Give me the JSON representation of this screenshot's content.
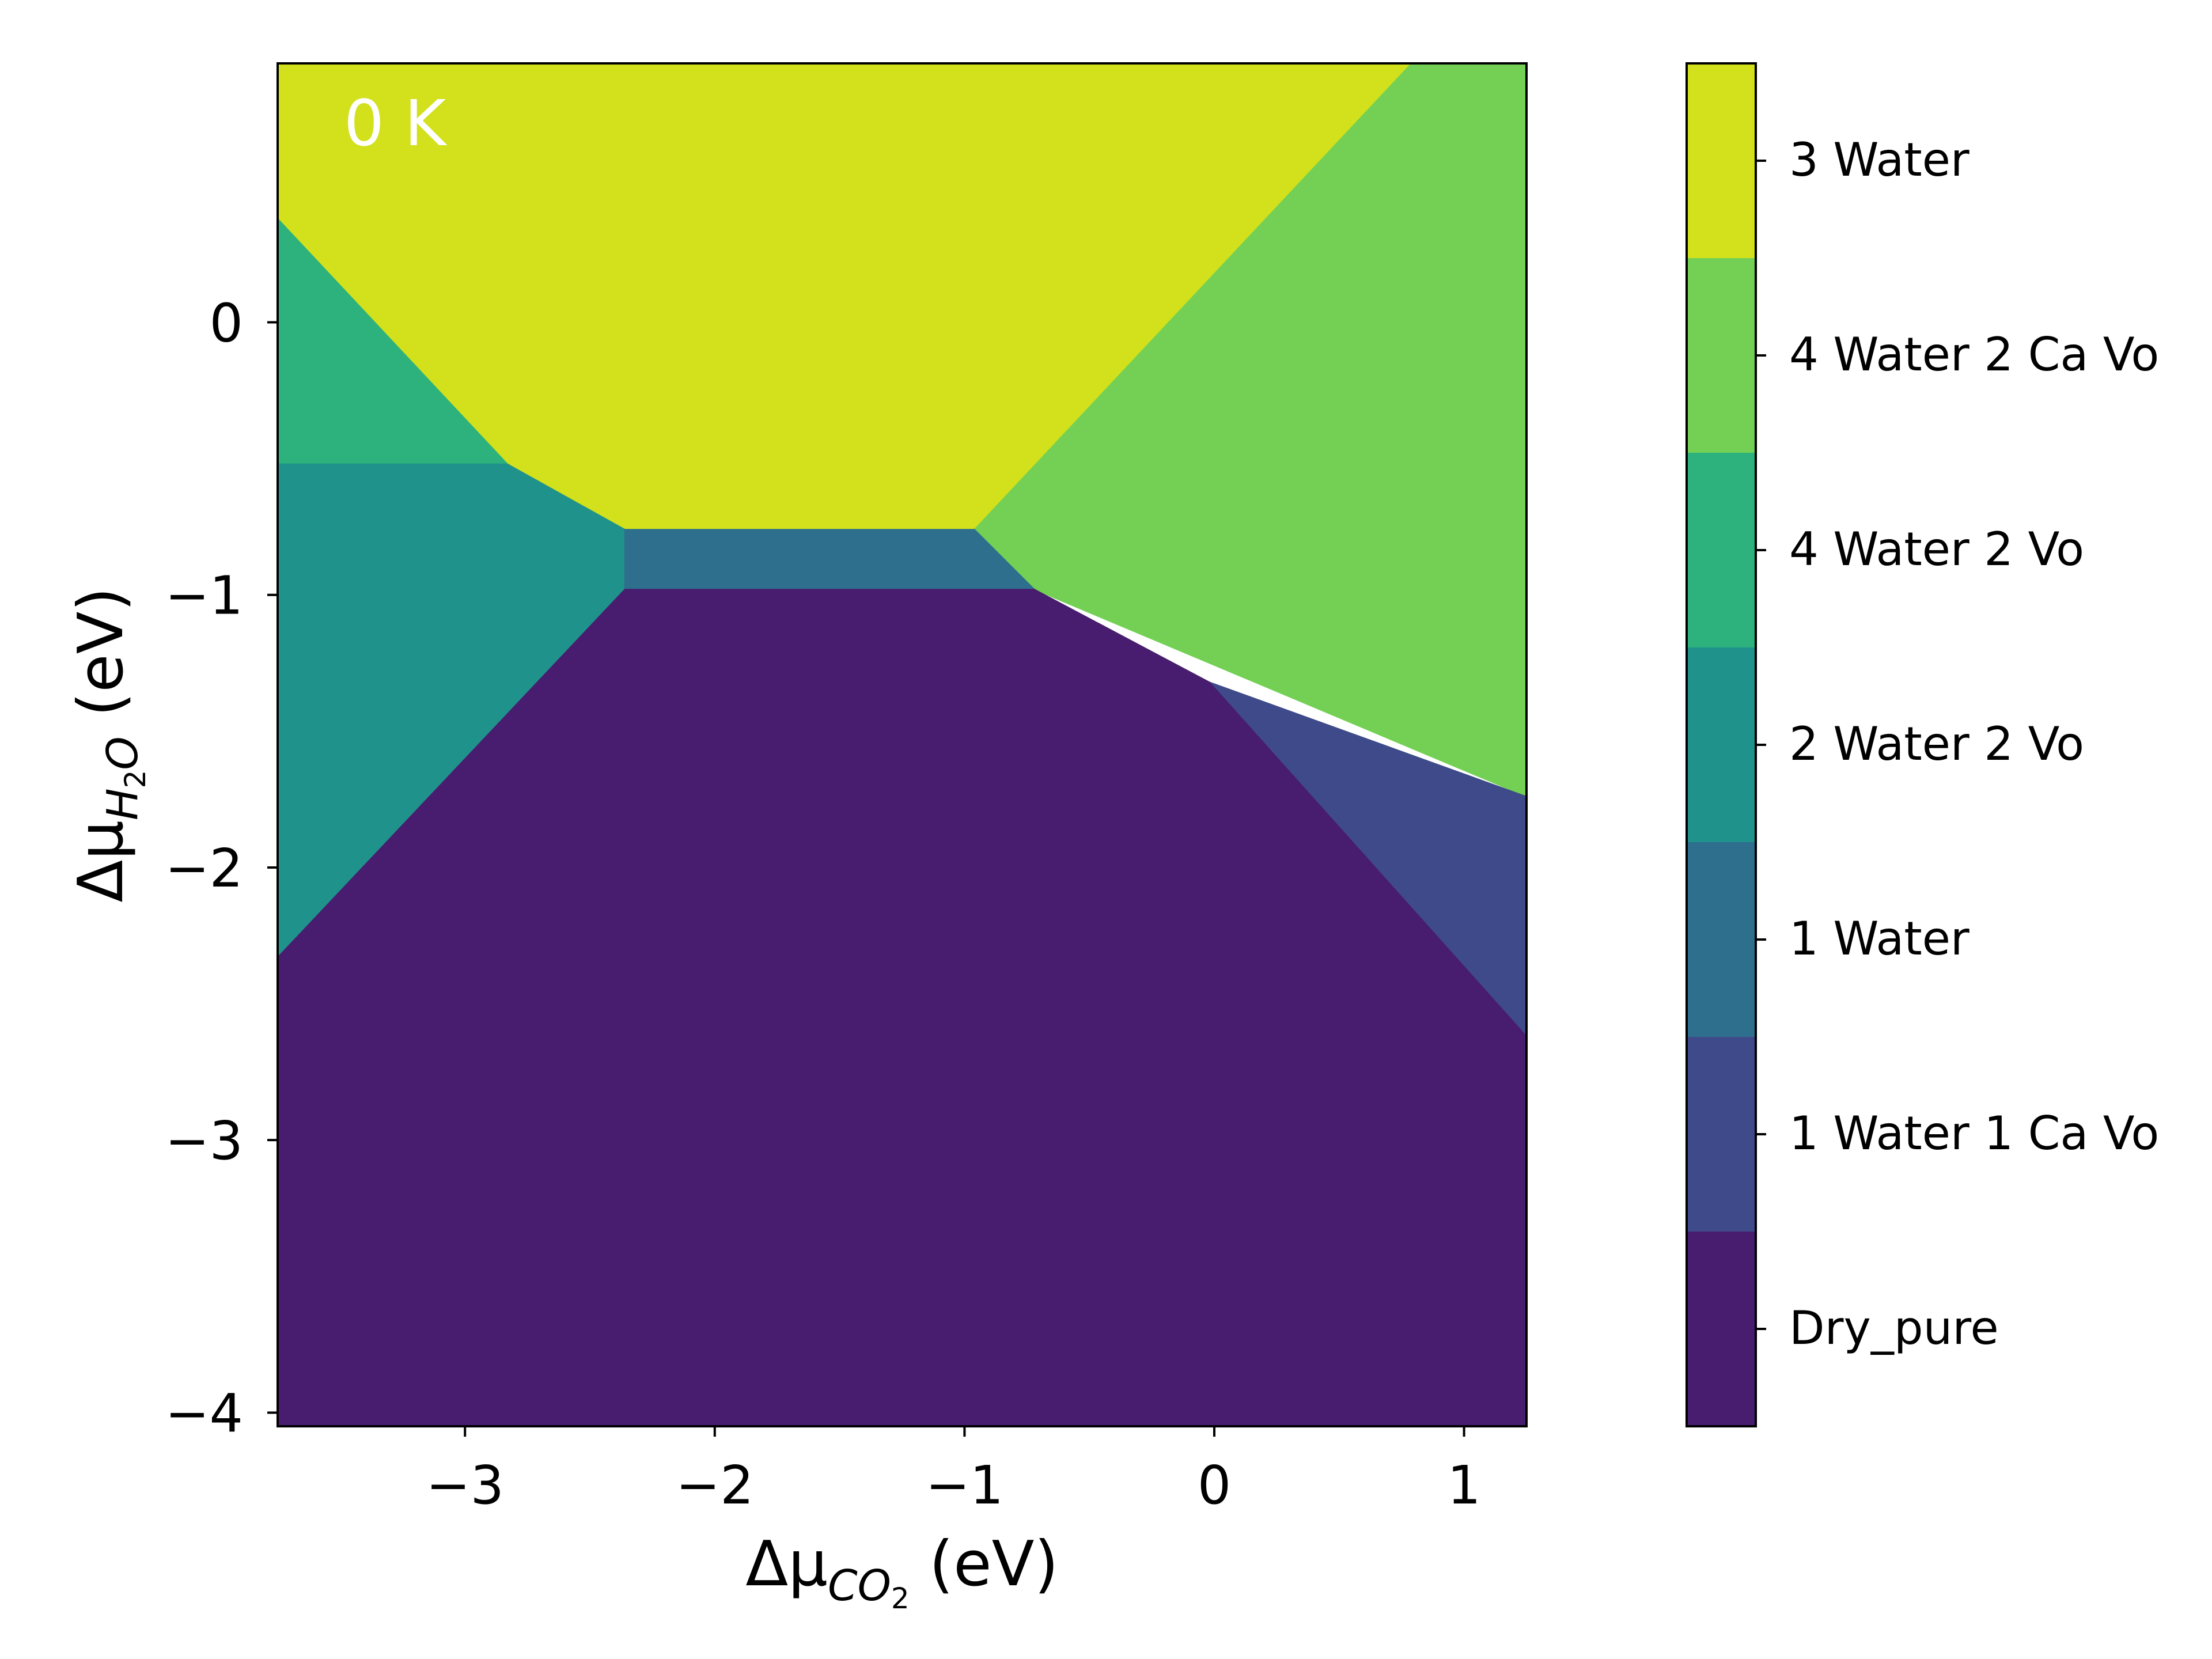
{
  "chart_data": {
    "type": "heatmap",
    "subtype": "phase-diagram",
    "annotation": "0 K",
    "xlabel": {
      "prefix": "Δμ",
      "sub": "CO",
      "subsub": "2",
      "suffix": " (eV)"
    },
    "ylabel": {
      "prefix": "Δμ",
      "sub": "H",
      "subsub": "2",
      "sub2": "O",
      "suffix": " (eV)"
    },
    "xlim": [
      -3.75,
      1.25
    ],
    "ylim": [
      -4.05,
      0.95
    ],
    "xticks": [
      -3,
      -2,
      -1,
      0,
      1
    ],
    "xtick_labels": [
      "−3",
      "−2",
      "−1",
      "0",
      "1"
    ],
    "yticks": [
      0,
      -1,
      -2,
      -3,
      -4
    ],
    "ytick_labels": [
      "0",
      "−1",
      "−2",
      "−3",
      "−4"
    ],
    "grid": false,
    "phases": [
      {
        "name": "3 Water",
        "color": "#d2e11b",
        "region": [
          [
            -3.75,
            0.95
          ],
          [
            0.79,
            0.95
          ],
          [
            -0.96,
            -0.76
          ],
          [
            -2.36,
            -0.76
          ],
          [
            -2.83,
            -0.52
          ],
          [
            -3.75,
            0.38
          ]
        ]
      },
      {
        "name": "4 Water 2 Ca Vo",
        "color": "#73d055",
        "region": [
          [
            0.79,
            0.95
          ],
          [
            1.25,
            0.95
          ],
          [
            1.25,
            -1.74
          ],
          [
            -0.72,
            -0.98
          ],
          [
            -0.96,
            -0.76
          ]
        ]
      },
      {
        "name": "4 Water 2 Vo",
        "color": "#2db27d",
        "region": [
          [
            -3.75,
            0.38
          ],
          [
            -2.83,
            -0.52
          ],
          [
            -3.75,
            -0.52
          ]
        ]
      },
      {
        "name": "2 Water 2 Vo",
        "color": "#20928c",
        "region": [
          [
            -3.75,
            -0.52
          ],
          [
            -2.83,
            -0.52
          ],
          [
            -2.36,
            -0.76
          ],
          [
            -2.36,
            -0.98
          ],
          [
            -3.75,
            -2.33
          ]
        ]
      },
      {
        "name": "1 Water",
        "color": "#2e6f8e",
        "region": [
          [
            -2.36,
            -0.76
          ],
          [
            -0.96,
            -0.76
          ],
          [
            -0.72,
            -0.98
          ],
          [
            -2.36,
            -0.98
          ]
        ]
      },
      {
        "name": "1 Water 1 Ca Vo",
        "color": "#3f4a8a",
        "region": [
          [
            -0.02,
            -1.32
          ],
          [
            1.25,
            -1.74
          ],
          [
            1.25,
            -2.62
          ]
        ]
      },
      {
        "name": "Dry_pure",
        "color": "#481c6e",
        "region": [
          [
            -3.75,
            -2.33
          ],
          [
            -2.36,
            -0.98
          ],
          [
            -0.72,
            -0.98
          ],
          [
            -0.02,
            -1.32
          ],
          [
            1.25,
            -2.62
          ],
          [
            1.25,
            -4.05
          ],
          [
            -3.75,
            -4.05
          ]
        ]
      }
    ],
    "colorbar": {
      "labels": [
        "3 Water",
        "4 Water 2 Ca Vo",
        "4 Water 2 Vo",
        "2 Water 2 Vo",
        "1 Water",
        "1 Water 1 Ca Vo",
        "Dry_pure"
      ],
      "colors": [
        "#d2e11b",
        "#73d055",
        "#2db27d",
        "#20928c",
        "#2e6f8e",
        "#3f4a8a",
        "#481c6e"
      ]
    }
  }
}
